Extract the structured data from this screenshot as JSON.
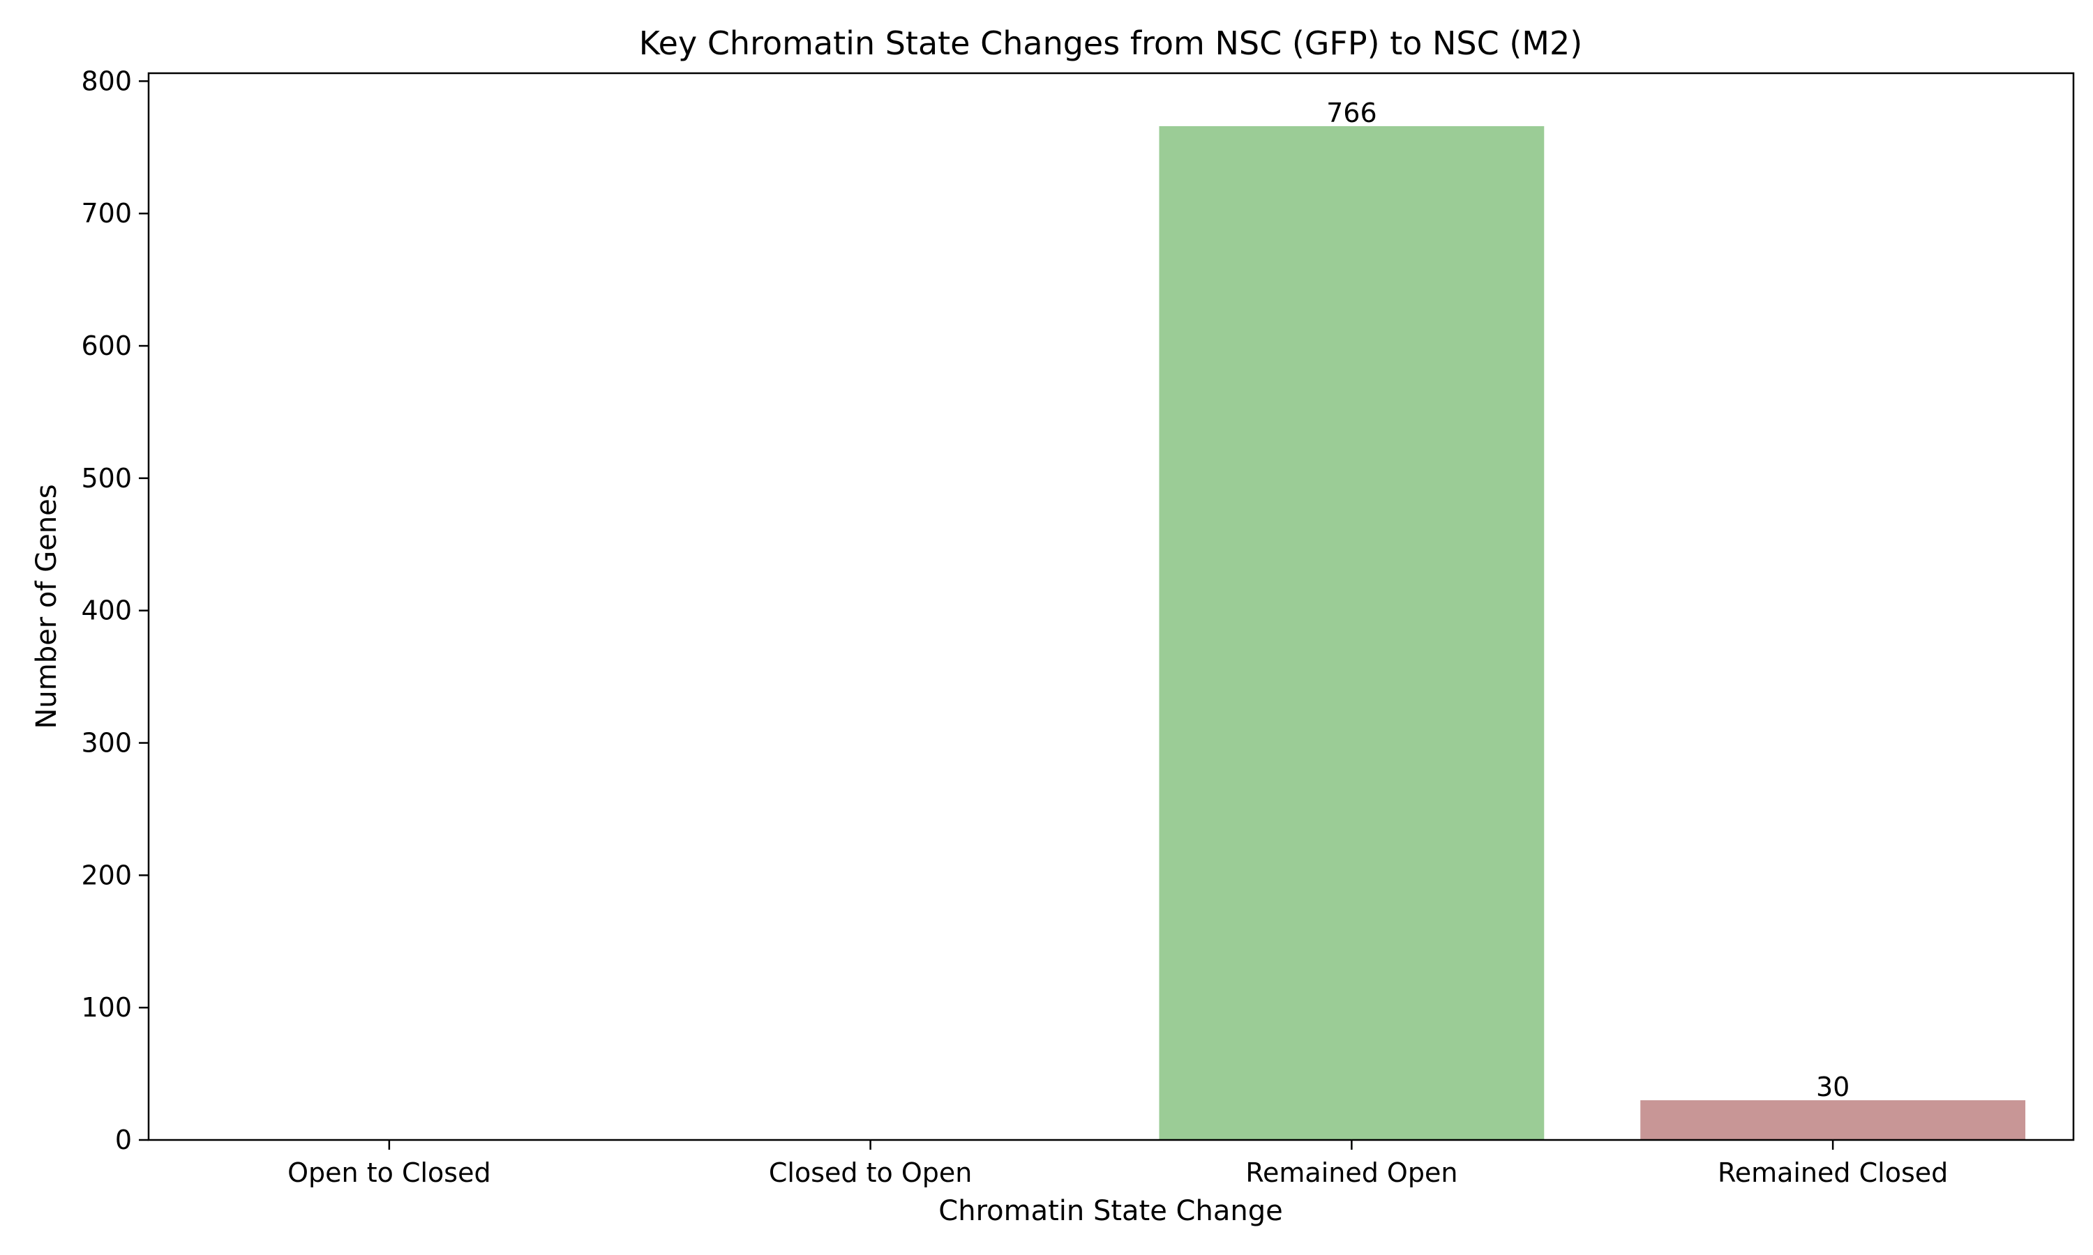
{
  "chart_data": {
    "type": "bar",
    "title": "Key Chromatin State Changes from NSC (GFP) to NSC (M2)",
    "xlabel": "Chromatin State Change",
    "ylabel": "Number of Genes",
    "categories": [
      "Open to Closed",
      "Closed to Open",
      "Remained Open",
      "Remained Closed"
    ],
    "values": [
      0,
      0,
      766,
      30
    ],
    "data_labels": [
      "",
      "",
      "766",
      "30"
    ],
    "bar_colors": [
      "#9bcc96",
      "#9bcc96",
      "#9bcc96",
      "#c89696"
    ],
    "ylim": [
      0,
      800
    ],
    "yticks": [
      0,
      100,
      200,
      300,
      400,
      500,
      600,
      700,
      800
    ],
    "grid": false,
    "legend": "none"
  }
}
